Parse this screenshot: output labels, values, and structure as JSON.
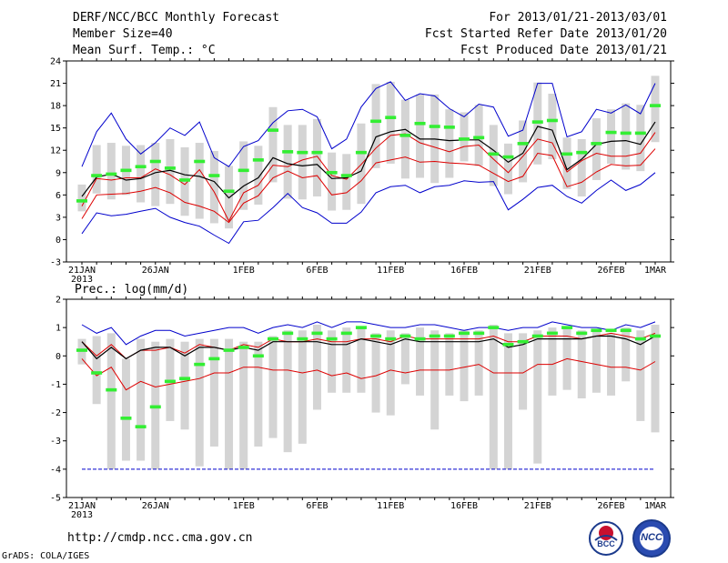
{
  "header": {
    "title": "DERF/NCC/BCC Monthly Forecast",
    "member_size": "Member Size=40",
    "variable": "Mean Surf. Temp.: °C",
    "period": "For 2013/01/21-2013/03/01",
    "start_date": "Fcst Started Refer Date 2013/01/20",
    "produced_date": "Fcst Produced Date 2013/01/21"
  },
  "footer": {
    "url": "http://cmdp.ncc.cma.gov.cn",
    "credit": "GrADS: COLA/IGES",
    "logo_bcc": "BCC",
    "logo_ncc": "NCC"
  },
  "colors": {
    "envelope": "#0000cc",
    "inner": "#dd0000",
    "mean": "#000000",
    "box": "#d4d4d4",
    "marker": "#33ee33"
  },
  "chart_data": [
    {
      "type": "line",
      "name": "temperature",
      "ylabel": "Mean Surf. Temp.: °C",
      "ylim": [
        -3,
        24
      ],
      "yticks": [
        -3,
        0,
        3,
        6,
        9,
        12,
        15,
        18,
        21,
        24
      ],
      "x_count": 40,
      "x_tick_labels": [
        {
          "index": 0,
          "label": "21JAN",
          "sub": "2013"
        },
        {
          "index": 5,
          "label": "26JAN"
        },
        {
          "index": 11,
          "label": "1FEB"
        },
        {
          "index": 16,
          "label": "6FEB"
        },
        {
          "index": 21,
          "label": "11FEB"
        },
        {
          "index": 26,
          "label": "16FEB"
        },
        {
          "index": 31,
          "label": "21FEB"
        },
        {
          "index": 36,
          "label": "26FEB"
        },
        {
          "index": 39,
          "label": "1MAR"
        }
      ],
      "series": [
        {
          "name": "max",
          "values": [
            0.8,
            3.6,
            3.2,
            3.4,
            3.8,
            4.2,
            3.0,
            2.3,
            1.8,
            0.6,
            -0.5,
            2.4,
            2.6,
            4.3,
            6.2,
            4.3,
            3.6,
            2.2,
            2.2,
            3.7,
            6.3,
            7.1,
            7.3,
            6.3,
            7.1,
            7.3,
            7.9,
            7.7,
            7.8,
            4.0,
            5.4,
            7.0,
            7.3,
            5.8,
            4.9,
            6.6,
            8.0,
            6.6,
            7.4,
            9.0
          ]
        },
        {
          "name": "upper",
          "values": [
            4.5,
            8.2,
            8.0,
            8.3,
            8.3,
            9.5,
            8.7,
            7.4,
            9.4,
            6.4,
            2.5,
            6.3,
            7.3,
            10.0,
            9.8,
            10.7,
            11.2,
            8.6,
            8.1,
            10.1,
            12.3,
            14.0,
            14.2,
            13.0,
            12.4,
            11.8,
            12.5,
            12.7,
            10.8,
            9.0,
            11.2,
            13.5,
            13.0,
            9.1,
            10.6,
            11.6,
            11.2,
            11.2,
            11.6,
            14.4
          ]
        },
        {
          "name": "mean",
          "values": [
            5.8,
            8.4,
            8.8,
            8.0,
            8.2,
            9.0,
            9.3,
            8.7,
            8.5,
            7.8,
            5.6,
            7.2,
            8.3,
            11.0,
            10.2,
            9.9,
            10.1,
            8.2,
            8.3,
            9.2,
            13.8,
            14.5,
            14.8,
            13.5,
            13.5,
            13.3,
            13.4,
            13.4,
            12.0,
            10.4,
            11.6,
            15.2,
            14.7,
            9.4,
            10.8,
            12.8,
            13.2,
            13.3,
            12.8,
            15.8
          ]
        },
        {
          "name": "lower",
          "values": [
            2.8,
            6.0,
            6.1,
            6.2,
            6.5,
            7.0,
            6.3,
            5.0,
            4.5,
            3.8,
            2.3,
            4.9,
            5.9,
            8.3,
            9.2,
            8.3,
            8.6,
            6.0,
            6.3,
            7.9,
            10.3,
            10.7,
            11.1,
            10.4,
            10.5,
            10.3,
            10.2,
            10.0,
            8.9,
            7.8,
            8.5,
            11.6,
            11.3,
            7.1,
            7.7,
            9.1,
            10.1,
            9.9,
            10.0,
            12.2
          ]
        },
        {
          "name": "min",
          "values": [
            9.8,
            14.5,
            17.0,
            13.5,
            11.5,
            13.0,
            15.0,
            14.0,
            15.8,
            11.0,
            9.8,
            12.5,
            13.3,
            15.7,
            17.3,
            17.5,
            16.5,
            12.2,
            13.5,
            17.8,
            20.3,
            21.2,
            18.7,
            19.6,
            19.3,
            17.6,
            16.5,
            18.2,
            17.8,
            13.9,
            14.7,
            21.0,
            21.0,
            13.8,
            14.5,
            17.5,
            17.0,
            18.1,
            16.9,
            21.0
          ]
        }
      ],
      "box_low": [
        3.8,
        6.2,
        5.4,
        6.0,
        5.0,
        4.5,
        4.8,
        3.2,
        2.8,
        2.2,
        1.5,
        4.0,
        4.7,
        7.7,
        5.5,
        5.4,
        5.8,
        3.9,
        4.0,
        4.8,
        9.6,
        10.2,
        8.2,
        8.3,
        7.6,
        8.3,
        10.5,
        9.9,
        7.2,
        6.1,
        7.7,
        10.1,
        10.8,
        6.8,
        5.8,
        8.0,
        10.2,
        9.4,
        9.2,
        13.1
      ],
      "box_high": [
        7.4,
        12.7,
        13.0,
        12.6,
        12.7,
        13.0,
        13.5,
        12.4,
        13.0,
        11.9,
        9.9,
        13.2,
        12.6,
        17.8,
        15.4,
        15.4,
        16.2,
        11.7,
        11.5,
        15.6,
        20.9,
        21.2,
        18.8,
        19.5,
        19.5,
        17.5,
        17.1,
        18.1,
        15.4,
        12.9,
        16.0,
        21.1,
        19.6,
        13.7,
        13.5,
        16.3,
        17.5,
        18.3,
        18.1,
        22.0
      ],
      "markers": [
        5.2,
        8.6,
        8.8,
        9.3,
        9.8,
        10.5,
        9.6,
        8.0,
        10.5,
        8.6,
        6.5,
        9.3,
        10.7,
        14.7,
        11.8,
        11.7,
        11.7,
        9.0,
        8.6,
        11.7,
        15.9,
        16.4,
        14.0,
        15.6,
        15.2,
        15.1,
        13.5,
        13.7,
        11.5,
        11.1,
        12.9,
        15.8,
        16.0,
        11.5,
        11.7,
        12.9,
        14.4,
        14.3,
        14.3,
        18.0
      ]
    },
    {
      "type": "line",
      "name": "precipitation",
      "ylabel": "Prec.: log(mm/d)",
      "ylim": [
        -5,
        2
      ],
      "yticks": [
        -5,
        -4,
        -3,
        -2,
        -1,
        0,
        1,
        2
      ],
      "x_count": 40,
      "x_tick_labels": [
        {
          "index": 0,
          "label": "21JAN",
          "sub": "2013"
        },
        {
          "index": 5,
          "label": "26JAN"
        },
        {
          "index": 11,
          "label": "1FEB"
        },
        {
          "index": 16,
          "label": "6FEB"
        },
        {
          "index": 21,
          "label": "11FEB"
        },
        {
          "index": 26,
          "label": "16FEB"
        },
        {
          "index": 31,
          "label": "21FEB"
        },
        {
          "index": 36,
          "label": "26FEB"
        },
        {
          "index": 39,
          "label": "1MAR"
        }
      ],
      "series": [
        {
          "name": "max",
          "values": [
            1.1,
            0.8,
            1.0,
            0.4,
            0.7,
            0.9,
            0.9,
            0.7,
            0.8,
            0.9,
            1.0,
            1.0,
            0.8,
            1.0,
            1.1,
            1.0,
            1.2,
            1.0,
            1.2,
            1.2,
            1.1,
            1.0,
            1.0,
            1.1,
            1.1,
            1.0,
            0.9,
            1.0,
            1.0,
            0.9,
            1.0,
            1.0,
            1.2,
            1.1,
            1.0,
            1.0,
            0.9,
            1.1,
            1.0,
            1.2
          ]
        },
        {
          "name": "upper",
          "values": [
            0.5,
            0.0,
            0.4,
            -0.1,
            0.2,
            0.2,
            0.3,
            0.1,
            0.4,
            0.3,
            0.2,
            0.4,
            0.3,
            0.6,
            0.5,
            0.5,
            0.6,
            0.5,
            0.5,
            0.6,
            0.6,
            0.5,
            0.7,
            0.6,
            0.6,
            0.6,
            0.6,
            0.6,
            0.7,
            0.5,
            0.5,
            0.7,
            0.7,
            0.7,
            0.6,
            0.7,
            0.8,
            0.7,
            0.6,
            0.8
          ]
        },
        {
          "name": "mean",
          "values": [
            0.5,
            -0.1,
            0.3,
            -0.1,
            0.2,
            0.3,
            0.3,
            0.0,
            0.3,
            0.3,
            0.2,
            0.3,
            0.2,
            0.5,
            0.5,
            0.5,
            0.5,
            0.4,
            0.4,
            0.6,
            0.5,
            0.4,
            0.6,
            0.5,
            0.5,
            0.5,
            0.5,
            0.5,
            0.6,
            0.3,
            0.4,
            0.6,
            0.6,
            0.6,
            0.6,
            0.7,
            0.7,
            0.6,
            0.4,
            0.7
          ]
        },
        {
          "name": "lower",
          "values": [
            -0.1,
            -0.7,
            -0.4,
            -1.2,
            -0.9,
            -1.1,
            -1.0,
            -0.9,
            -0.8,
            -0.6,
            -0.6,
            -0.4,
            -0.4,
            -0.5,
            -0.5,
            -0.6,
            -0.5,
            -0.7,
            -0.6,
            -0.8,
            -0.7,
            -0.5,
            -0.6,
            -0.5,
            -0.5,
            -0.5,
            -0.4,
            -0.3,
            -0.6,
            -0.6,
            -0.6,
            -0.3,
            -0.3,
            -0.1,
            -0.2,
            -0.3,
            -0.4,
            -0.4,
            -0.5,
            -0.2
          ]
        },
        {
          "name": "min",
          "values": [
            -4,
            -4,
            -4,
            -4,
            -4,
            -4,
            -4,
            -4,
            -4,
            -4,
            -4,
            -4,
            -4,
            -4,
            -4,
            -4,
            -4,
            -4,
            -4,
            -4,
            -4,
            -4,
            -4,
            -4,
            -4,
            -4,
            -4,
            -4,
            -4,
            -4,
            -4,
            -4,
            -4,
            -4,
            -4,
            -4,
            -4,
            -4,
            -4,
            -4
          ]
        }
      ],
      "box_low": [
        -0.3,
        -1.7,
        -4.0,
        -3.7,
        -3.7,
        -4.0,
        -2.3,
        -2.6,
        -3.9,
        -3.2,
        -4.0,
        -4.0,
        -3.2,
        -2.9,
        -3.4,
        -3.1,
        -1.9,
        -1.3,
        -1.3,
        -1.3,
        -2.0,
        -2.1,
        -1.0,
        -1.4,
        -2.6,
        -1.4,
        -1.6,
        -1.4,
        -4.0,
        -4.0,
        -1.9,
        -3.8,
        -1.4,
        -1.2,
        -1.5,
        -1.3,
        -1.4,
        -0.9,
        -2.3,
        -2.7
      ],
      "box_high": [
        0.6,
        0.7,
        0.8,
        -0.1,
        0.6,
        0.5,
        0.6,
        0.5,
        0.6,
        0.6,
        0.6,
        0.5,
        0.5,
        0.7,
        0.9,
        0.9,
        1.1,
        0.9,
        1.0,
        1.0,
        0.8,
        0.9,
        0.8,
        1.0,
        0.9,
        0.8,
        0.9,
        0.9,
        1.1,
        0.8,
        0.8,
        0.9,
        1.0,
        1.0,
        0.9,
        0.9,
        0.8,
        1.0,
        0.9,
        1.1
      ],
      "markers": [
        0.2,
        -0.6,
        -1.2,
        -2.2,
        -2.5,
        -1.8,
        -0.9,
        -0.8,
        -0.3,
        -0.1,
        0.2,
        0.3,
        0.0,
        0.6,
        0.8,
        0.6,
        0.8,
        0.6,
        0.8,
        1.0,
        0.7,
        0.6,
        0.7,
        0.6,
        0.7,
        0.7,
        0.8,
        0.8,
        1.0,
        0.4,
        0.5,
        0.7,
        0.8,
        1.0,
        0.8,
        0.9,
        0.9,
        0.9,
        0.6,
        0.7
      ]
    }
  ]
}
